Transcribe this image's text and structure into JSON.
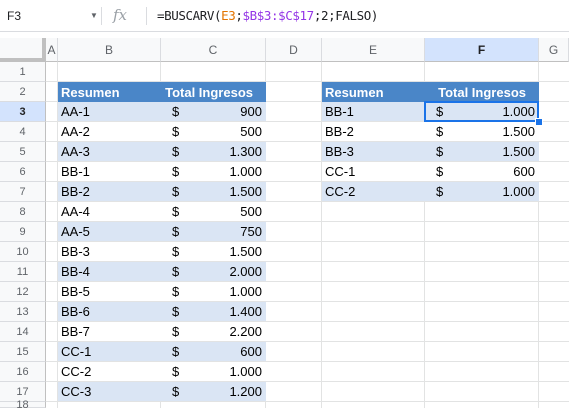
{
  "formula_bar": {
    "cell_ref": "F3",
    "fx_label": "fx",
    "formula": {
      "prefix": "=BUSCARV(",
      "ref1": "E3",
      "sep1": ";",
      "ref2": "$B$3:$C$17",
      "suffix": ";2;FALSO)"
    }
  },
  "columns": [
    "A",
    "B",
    "C",
    "D",
    "E",
    "F",
    "G"
  ],
  "rows": [
    "1",
    "2",
    "3",
    "4",
    "5",
    "6",
    "7",
    "8",
    "9",
    "10",
    "11",
    "12",
    "13",
    "14",
    "15",
    "16",
    "17",
    "18"
  ],
  "left_table": {
    "header": {
      "resumen": "Resumen",
      "total": "Total Ingresos"
    },
    "rows": [
      {
        "resumen": "AA-1",
        "cur": "$",
        "total": "900"
      },
      {
        "resumen": "AA-2",
        "cur": "$",
        "total": "500"
      },
      {
        "resumen": "AA-3",
        "cur": "$",
        "total": "1.300"
      },
      {
        "resumen": "BB-1",
        "cur": "$",
        "total": "1.000"
      },
      {
        "resumen": "BB-2",
        "cur": "$",
        "total": "1.500"
      },
      {
        "resumen": "AA-4",
        "cur": "$",
        "total": "500"
      },
      {
        "resumen": "AA-5",
        "cur": "$",
        "total": "750"
      },
      {
        "resumen": "BB-3",
        "cur": "$",
        "total": "1.500"
      },
      {
        "resumen": "BB-4",
        "cur": "$",
        "total": "2.000"
      },
      {
        "resumen": "BB-5",
        "cur": "$",
        "total": "1.000"
      },
      {
        "resumen": "BB-6",
        "cur": "$",
        "total": "1.400"
      },
      {
        "resumen": "BB-7",
        "cur": "$",
        "total": "2.200"
      },
      {
        "resumen": "CC-1",
        "cur": "$",
        "total": "600"
      },
      {
        "resumen": "CC-2",
        "cur": "$",
        "total": "1.000"
      },
      {
        "resumen": "CC-3",
        "cur": "$",
        "total": "1.200"
      }
    ]
  },
  "right_table": {
    "header": {
      "resumen": "Resumen",
      "total": "Total Ingresos"
    },
    "rows": [
      {
        "resumen": "BB-1",
        "cur": "$",
        "total": "1.000"
      },
      {
        "resumen": "BB-2",
        "cur": "$",
        "total": "1.500"
      },
      {
        "resumen": "BB-3",
        "cur": "$",
        "total": "1.500"
      },
      {
        "resumen": "CC-1",
        "cur": "$",
        "total": "600"
      },
      {
        "resumen": "CC-2",
        "cur": "$",
        "total": "1.000"
      }
    ]
  },
  "selection": {
    "cell": "F3",
    "column": "F",
    "row": "3"
  },
  "colors": {
    "header_fill": "#4a86c8",
    "band_fill": "#dae5f4",
    "selection": "#1a73e8"
  }
}
